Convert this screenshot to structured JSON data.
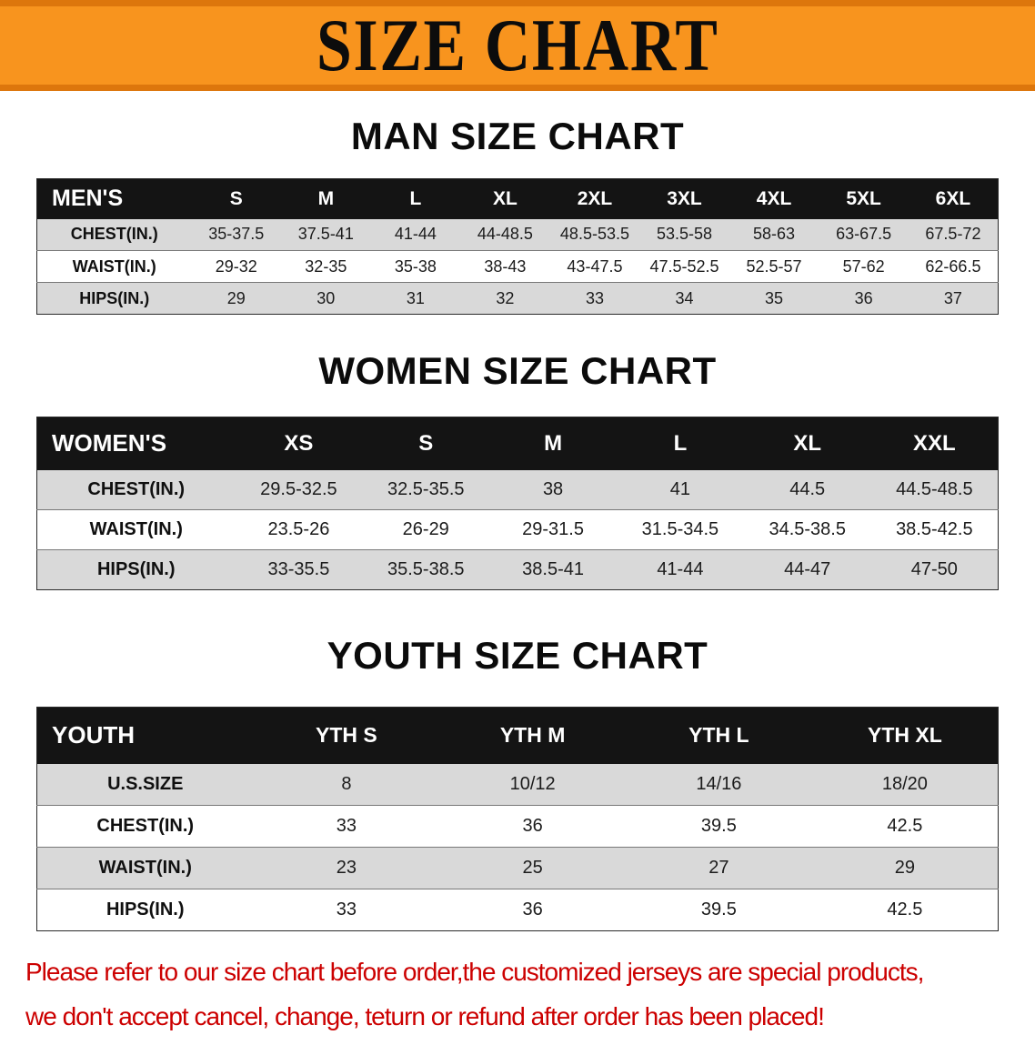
{
  "colors": {
    "banner-orange": "#f8941e",
    "banner-orange-dark": "#dd760c",
    "header-black": "#141414",
    "stripe-gray": "#d9d9d9",
    "notice-red": "#cc0000"
  },
  "banner": {
    "title": "SIZE CHART"
  },
  "sections": [
    {
      "id": "men",
      "heading": "MAN SIZE CHART",
      "table": {
        "header": [
          "MEN'S",
          "S",
          "M",
          "L",
          "XL",
          "2XL",
          "3XL",
          "4XL",
          "5XL",
          "6XL"
        ],
        "rows": [
          [
            "CHEST(IN.)",
            "35-37.5",
            "37.5-41",
            "41-44",
            "44-48.5",
            "48.5-53.5",
            "53.5-58",
            "58-63",
            "63-67.5",
            "67.5-72"
          ],
          [
            "WAIST(IN.)",
            "29-32",
            "32-35",
            "35-38",
            "38-43",
            "43-47.5",
            "47.5-52.5",
            "52.5-57",
            "57-62",
            "62-66.5"
          ],
          [
            "HIPS(IN.)",
            "29",
            "30",
            "31",
            "32",
            "33",
            "34",
            "35",
            "36",
            "37"
          ]
        ]
      }
    },
    {
      "id": "women",
      "heading": "WOMEN SIZE CHART",
      "table": {
        "header": [
          "WOMEN'S",
          "XS",
          "S",
          "M",
          "L",
          "XL",
          "XXL"
        ],
        "rows": [
          [
            "CHEST(IN.)",
            "29.5-32.5",
            "32.5-35.5",
            "38",
            "41",
            "44.5",
            "44.5-48.5"
          ],
          [
            "WAIST(IN.)",
            "23.5-26",
            "26-29",
            "29-31.5",
            "31.5-34.5",
            "34.5-38.5",
            "38.5-42.5"
          ],
          [
            "HIPS(IN.)",
            "33-35.5",
            "35.5-38.5",
            "38.5-41",
            "41-44",
            "44-47",
            "47-50"
          ]
        ]
      }
    },
    {
      "id": "youth",
      "heading": "YOUTH SIZE CHART",
      "table": {
        "header": [
          "YOUTH",
          "YTH S",
          "YTH M",
          "YTH L",
          "YTH XL"
        ],
        "rows": [
          [
            "U.S.SIZE",
            "8",
            "10/12",
            "14/16",
            "18/20"
          ],
          [
            "CHEST(IN.)",
            "33",
            "36",
            "39.5",
            "42.5"
          ],
          [
            "WAIST(IN.)",
            "23",
            "25",
            "27",
            "29"
          ],
          [
            "HIPS(IN.)",
            "33",
            "36",
            "39.5",
            "42.5"
          ]
        ]
      }
    }
  ],
  "footer": {
    "line1": "Please refer to our size chart before order,the customized jerseys are special products,",
    "line2": "we don't accept cancel, change, teturn or refund after order has been placed!"
  }
}
